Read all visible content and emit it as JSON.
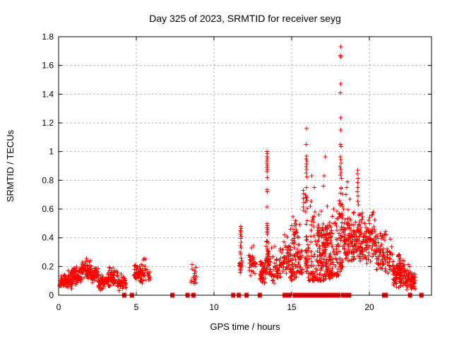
{
  "title": "Day 325 of 2023, SRMTID for receiver seyg",
  "colors": {
    "marker": "#ff0000",
    "border": "#000000",
    "grid": "#9e9e9e",
    "text": "#000000",
    "background": "#ffffff"
  },
  "chart_data": {
    "type": "scatter",
    "title": "Day 325 of 2023, SRMTID for receiver seyg",
    "xlabel": "GPS time / hours",
    "ylabel": "SRMTID / TECUs",
    "xlim": [
      0,
      24
    ],
    "ylim": [
      0,
      1.8
    ],
    "xticks": [
      0,
      5,
      10,
      15,
      20
    ],
    "xtick_labels": [
      "0",
      "5",
      "10",
      "15",
      "20"
    ],
    "yticks": [
      0,
      0.2,
      0.4,
      0.6,
      0.8,
      1.0,
      1.2,
      1.4,
      1.6,
      1.8
    ],
    "ytick_labels": [
      "0",
      "0.2",
      "0.4",
      "0.6",
      "0.8",
      "1",
      "1.2",
      "1.4",
      "1.6",
      "1.8"
    ],
    "grid": true,
    "legend": "none",
    "marker": {
      "shape": "plus",
      "color": "#ff0000",
      "size": 7
    },
    "series_name": "SRMTID",
    "notable_points": [
      [
        5.5,
        0.255
      ],
      [
        5.6,
        0.25
      ],
      [
        5.45,
        0.245
      ],
      [
        8.6,
        0.215
      ],
      [
        11.72,
        0.48
      ],
      [
        11.74,
        0.465
      ],
      [
        11.7,
        0.45
      ],
      [
        11.73,
        0.44
      ],
      [
        11.71,
        0.425
      ],
      [
        11.75,
        0.41
      ],
      [
        11.72,
        0.395
      ],
      [
        11.74,
        0.37
      ],
      [
        11.7,
        0.345
      ],
      [
        11.76,
        0.33
      ],
      [
        11.69,
        0.3
      ],
      [
        11.73,
        0.285
      ],
      [
        12.4,
        0.33
      ],
      [
        12.55,
        0.345
      ],
      [
        13.4,
        1.0
      ],
      [
        13.43,
        0.985
      ],
      [
        13.41,
        0.965
      ],
      [
        13.44,
        0.95
      ],
      [
        13.42,
        0.935
      ],
      [
        13.4,
        0.92
      ],
      [
        13.43,
        0.905
      ],
      [
        13.41,
        0.89
      ],
      [
        13.44,
        0.875
      ],
      [
        13.42,
        0.86
      ],
      [
        13.43,
        0.82
      ],
      [
        13.4,
        0.735
      ],
      [
        13.44,
        0.72
      ],
      [
        13.42,
        0.615
      ],
      [
        13.4,
        0.5
      ],
      [
        13.43,
        0.485
      ],
      [
        13.41,
        0.47
      ],
      [
        13.45,
        0.455
      ],
      [
        13.42,
        0.44
      ],
      [
        13.44,
        0.425
      ],
      [
        13.7,
        0.33
      ],
      [
        13.9,
        0.34
      ],
      [
        14.55,
        0.42
      ],
      [
        14.7,
        0.405
      ],
      [
        15.1,
        0.545
      ],
      [
        15.25,
        0.52
      ],
      [
        15.75,
        0.73
      ],
      [
        15.78,
        0.705
      ],
      [
        15.74,
        0.675
      ],
      [
        15.77,
        0.645
      ],
      [
        15.75,
        0.615
      ],
      [
        15.78,
        0.59
      ],
      [
        15.95,
        1.16
      ],
      [
        15.93,
        1.05
      ],
      [
        15.96,
        0.97
      ],
      [
        15.94,
        0.95
      ],
      [
        15.97,
        0.935
      ],
      [
        15.95,
        0.915
      ],
      [
        15.93,
        0.895
      ],
      [
        15.96,
        0.875
      ],
      [
        15.94,
        0.85
      ],
      [
        15.97,
        0.825
      ],
      [
        15.95,
        0.75
      ],
      [
        16.3,
        0.83
      ],
      [
        16.25,
        0.655
      ],
      [
        16.2,
        0.62
      ],
      [
        16.45,
        0.75
      ],
      [
        16.5,
        0.58
      ],
      [
        17.15,
        0.965
      ],
      [
        17.1,
        0.83
      ],
      [
        17.05,
        0.76
      ],
      [
        17.3,
        0.62
      ],
      [
        16.9,
        0.585
      ],
      [
        16.75,
        0.56
      ],
      [
        17.7,
        0.6
      ],
      [
        17.9,
        0.585
      ],
      [
        18.15,
        1.73
      ],
      [
        18.13,
        1.67
      ],
      [
        18.16,
        1.66
      ],
      [
        18.15,
        1.47
      ],
      [
        18.13,
        1.41
      ],
      [
        18.16,
        1.235
      ],
      [
        18.17,
        1.15
      ],
      [
        18.14,
        1.05
      ],
      [
        18.19,
        1.035
      ],
      [
        18.13,
        0.965
      ],
      [
        18.16,
        0.945
      ],
      [
        18.18,
        0.92
      ],
      [
        18.12,
        0.895
      ],
      [
        18.15,
        0.875
      ],
      [
        18.18,
        0.855
      ],
      [
        18.13,
        0.835
      ],
      [
        18.2,
        0.815
      ],
      [
        18.6,
        0.79
      ],
      [
        18.55,
        0.75
      ],
      [
        18.5,
        0.7
      ],
      [
        18.75,
        0.67
      ],
      [
        19.25,
        0.87
      ],
      [
        19.23,
        0.845
      ],
      [
        19.27,
        0.815
      ],
      [
        19.24,
        0.785
      ],
      [
        19.26,
        0.75
      ],
      [
        19.23,
        0.72
      ],
      [
        19.27,
        0.69
      ],
      [
        19.25,
        0.655
      ],
      [
        19.3,
        0.63
      ],
      [
        21.05,
        0.445
      ],
      [
        21.1,
        0.42
      ],
      [
        22.5,
        0.215
      ],
      [
        22.6,
        0.2
      ]
    ],
    "clusters": [
      {
        "x": [
          0.05,
          0.9
        ],
        "y": [
          0.04,
          0.16
        ],
        "n": 75,
        "bias": "mid"
      },
      {
        "x": [
          0.6,
          1.0
        ],
        "y": [
          0.12,
          0.2
        ],
        "n": 15,
        "bias": "mid"
      },
      {
        "x": [
          0.9,
          1.45
        ],
        "y": [
          0.06,
          0.21
        ],
        "n": 55,
        "bias": "mid"
      },
      {
        "x": [
          1.45,
          2.1
        ],
        "y": [
          0.1,
          0.26
        ],
        "n": 75,
        "bias": "mid"
      },
      {
        "x": [
          2.1,
          2.55
        ],
        "y": [
          0.07,
          0.2
        ],
        "n": 45,
        "bias": "mid"
      },
      {
        "x": [
          2.55,
          3.15
        ],
        "y": [
          0.03,
          0.15
        ],
        "n": 60,
        "bias": "mid"
      },
      {
        "x": [
          3.15,
          3.8
        ],
        "y": [
          0.05,
          0.2
        ],
        "n": 60,
        "bias": "mid"
      },
      {
        "x": [
          3.8,
          4.35
        ],
        "y": [
          0.03,
          0.15
        ],
        "n": 45,
        "bias": "mid"
      },
      {
        "x": [
          4.85,
          5.9
        ],
        "y": [
          0.08,
          0.23
        ],
        "n": 85,
        "bias": "mid"
      },
      {
        "x": [
          8.5,
          8.9
        ],
        "y": [
          0.08,
          0.2
        ],
        "n": 16,
        "bias": "none"
      },
      {
        "x": [
          11.63,
          11.82
        ],
        "y": [
          0.15,
          0.27
        ],
        "n": 18,
        "bias": "mid"
      },
      {
        "x": [
          12.2,
          12.7
        ],
        "y": [
          0.13,
          0.3
        ],
        "n": 32,
        "bias": "mid"
      },
      {
        "x": [
          12.95,
          13.35
        ],
        "y": [
          0.07,
          0.28
        ],
        "n": 50,
        "bias": "mid"
      },
      {
        "x": [
          13.35,
          13.55
        ],
        "y": [
          0.12,
          0.42
        ],
        "n": 32,
        "bias": "mid"
      },
      {
        "x": [
          13.55,
          14.15
        ],
        "y": [
          0.07,
          0.3
        ],
        "n": 50,
        "bias": "mid"
      },
      {
        "x": [
          14.2,
          14.9
        ],
        "y": [
          0.1,
          0.38
        ],
        "n": 60,
        "bias": "mid"
      },
      {
        "x": [
          14.9,
          15.35
        ],
        "y": [
          0.1,
          0.5
        ],
        "n": 65,
        "bias": "low"
      },
      {
        "x": [
          15.35,
          15.72
        ],
        "y": [
          0.15,
          0.5
        ],
        "n": 40,
        "bias": "low"
      },
      {
        "x": [
          15.88,
          16.02
        ],
        "y": [
          0.35,
          0.7
        ],
        "n": 14,
        "bias": "none"
      },
      {
        "x": [
          15.85,
          16.1
        ],
        "y": [
          0.15,
          0.35
        ],
        "n": 22,
        "bias": "mid"
      },
      {
        "x": [
          16.05,
          16.6
        ],
        "y": [
          0.1,
          0.55
        ],
        "n": 50,
        "bias": "low"
      },
      {
        "x": [
          16.6,
          17.45
        ],
        "y": [
          0.1,
          0.5
        ],
        "n": 120,
        "bias": "low"
      },
      {
        "x": [
          16.7,
          17.35
        ],
        "y": [
          0.3,
          0.55
        ],
        "n": 32,
        "bias": "mid"
      },
      {
        "x": [
          17.45,
          18.05
        ],
        "y": [
          0.12,
          0.55
        ],
        "n": 75,
        "bias": "low"
      },
      {
        "x": [
          18.06,
          18.28
        ],
        "y": [
          0.3,
          0.8
        ],
        "n": 26,
        "bias": "mid"
      },
      {
        "x": [
          18.05,
          18.35
        ],
        "y": [
          0.15,
          0.3
        ],
        "n": 16,
        "bias": "mid"
      },
      {
        "x": [
          18.3,
          19.0
        ],
        "y": [
          0.18,
          0.62
        ],
        "n": 95,
        "bias": "mid"
      },
      {
        "x": [
          19.0,
          20.4
        ],
        "y": [
          0.2,
          0.55
        ],
        "n": 160,
        "bias": "mid"
      },
      {
        "x": [
          19.3,
          20.35
        ],
        "y": [
          0.5,
          0.58
        ],
        "n": 12,
        "bias": "none"
      },
      {
        "x": [
          20.4,
          21.0
        ],
        "y": [
          0.15,
          0.48
        ],
        "n": 60,
        "bias": "mid"
      },
      {
        "x": [
          21.0,
          21.5
        ],
        "y": [
          0.1,
          0.42
        ],
        "n": 32,
        "bias": "mid"
      },
      {
        "x": [
          21.5,
          22.3
        ],
        "y": [
          0.04,
          0.25
        ],
        "n": 115,
        "bias": "mid"
      },
      {
        "x": [
          21.85,
          22.05
        ],
        "y": [
          0.18,
          0.3
        ],
        "n": 12,
        "bias": "none"
      },
      {
        "x": [
          22.3,
          22.95
        ],
        "y": [
          0.03,
          0.18
        ],
        "n": 75,
        "bias": "mid"
      }
    ],
    "zero_value_x": [
      4.22,
      4.72,
      7.32,
      8.3,
      8.68,
      11.24,
      11.6,
      12.1,
      12.95,
      14.55,
      14.7,
      14.85,
      15.2,
      15.4,
      15.62,
      15.8,
      15.95,
      16.05,
      16.15,
      16.3,
      16.45,
      16.55,
      16.7,
      16.78,
      16.86,
      16.94,
      17.02,
      17.1,
      17.18,
      17.26,
      17.34,
      17.42,
      17.5,
      17.62,
      17.72,
      17.92,
      18.0,
      18.3,
      18.38,
      18.46,
      18.54,
      18.62,
      18.7,
      20.95,
      21.05,
      22.62,
      23.35
    ]
  }
}
